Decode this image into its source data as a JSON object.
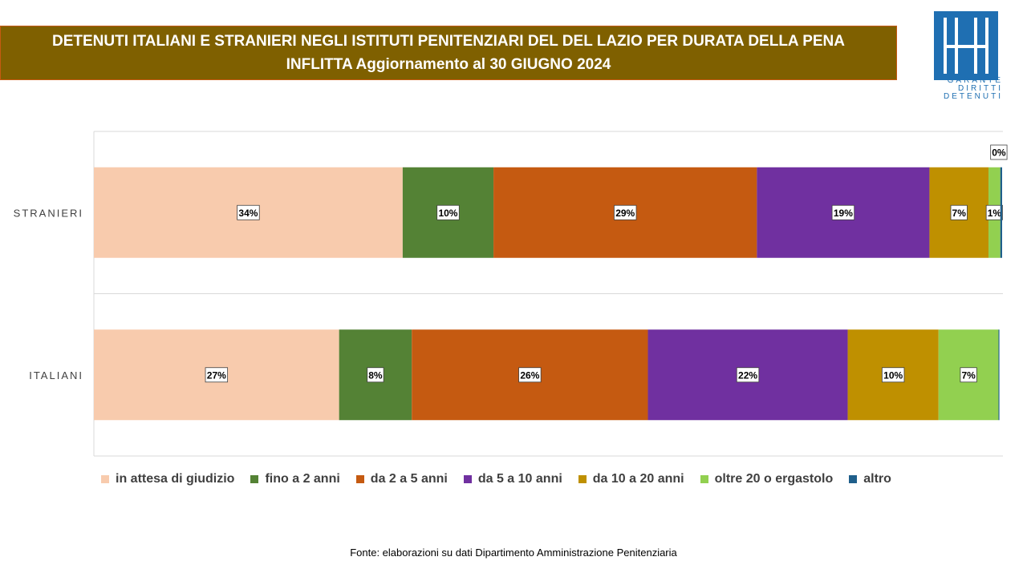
{
  "header": {
    "title_line1": "DETENUTI  ITALIANI E STRANIERI NEGLI ISTITUTI PENITENZIARI DEL DEL LAZIO PER DURATA DELLA PENA",
    "title_line2": "INFLITTA Aggiornamento al 30 GIUGNO 2024",
    "background": "#7f6000",
    "border": "#c55a11"
  },
  "logo": {
    "lines": [
      "GARANTE",
      "DIRITTI",
      "DETENUTI"
    ],
    "color": "#1f6fb2"
  },
  "chart_data": {
    "type": "bar",
    "orientation": "horizontal",
    "stacked": "100%",
    "categories": [
      "STRANIERI",
      "ITALIANI"
    ],
    "series": [
      {
        "name": "in attesa di giudizio",
        "color": "#f8cbad",
        "values": [
          34,
          27
        ],
        "labels": [
          "34%",
          "27%"
        ]
      },
      {
        "name": "fino a 2 anni",
        "color": "#548235",
        "values": [
          10,
          8
        ],
        "labels": [
          "10%",
          "8%"
        ]
      },
      {
        "name": "da 2 a 5 anni",
        "color": "#c55a11",
        "values": [
          29,
          26
        ],
        "labels": [
          "29%",
          "26%"
        ]
      },
      {
        "name": "da 5 a 10 anni",
        "color": "#7030a0",
        "values": [
          19,
          22
        ],
        "labels": [
          "19%",
          "22%"
        ]
      },
      {
        "name": "da 10 a 20 anni",
        "color": "#bf9000",
        "values": [
          6.5,
          10
        ],
        "labels": [
          "7%",
          "10%"
        ]
      },
      {
        "name": "oltre 20 o ergastolo",
        "color": "#92d050",
        "values": [
          1.3,
          6.6
        ],
        "labels": [
          "1%",
          "7%"
        ]
      },
      {
        "name": "altro",
        "color": "#1f5f8b",
        "values": [
          0.2,
          0.1
        ],
        "labels": [
          "0%",
          null
        ]
      }
    ],
    "xlim": [
      0,
      100
    ],
    "grid": "horizontal separators",
    "legend": "bottom"
  },
  "legend": {
    "items": [
      {
        "label": "in attesa di giudizio",
        "color": "#f8cbad"
      },
      {
        "label": "fino a 2 anni",
        "color": "#548235"
      },
      {
        "label": "da 2 a 5 anni",
        "color": "#c55a11"
      },
      {
        "label": "da 5 a 10 anni",
        "color": "#7030a0"
      },
      {
        "label": "da 10 a 20 anni",
        "color": "#bf9000"
      },
      {
        "label": "oltre 20 o ergastolo",
        "color": "#92d050"
      },
      {
        "label": "altro",
        "color": "#1f5f8b"
      }
    ]
  },
  "footer": {
    "source": "Fonte: elaborazioni su dati Dipartimento Amministrazione Penitenziaria"
  }
}
